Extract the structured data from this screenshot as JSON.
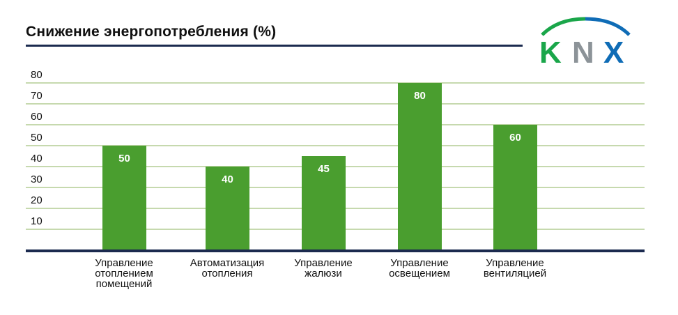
{
  "title": "Снижение энергопотребления (%)",
  "logo": {
    "text": [
      "K",
      "N",
      "X"
    ],
    "colors": {
      "k": "#1aa64a",
      "n": "#8c9398",
      "x": "#0f6cb6",
      "arc_left": "#1aa64a",
      "arc_right": "#0f6cb6"
    }
  },
  "colors": {
    "bar": "#4a9e2f",
    "grid": "#c6d9ae",
    "axis": "#1b2a4f",
    "bar_label": "#ffffff"
  },
  "y_ticks": [
    "80",
    "70",
    "60",
    "50",
    "40",
    "30",
    "20",
    "10"
  ],
  "bars": [
    {
      "label": "Управление\nотоплением\nпомещений",
      "value": "50"
    },
    {
      "label": "Автоматизация\nотопления",
      "value": "40"
    },
    {
      "label": "Управление\nжалюзи",
      "value": "45"
    },
    {
      "label": "Управление\nосвещением",
      "value": "80"
    },
    {
      "label": "Управление\nвентиляцией",
      "value": "60"
    }
  ],
  "chart_data": {
    "type": "bar",
    "title": "Снижение энергопотребления (%)",
    "categories": [
      "Управление отоплением помещений",
      "Автоматизация отопления",
      "Управление жалюзи",
      "Управление освещением",
      "Управление вентиляцией"
    ],
    "values": [
      50,
      40,
      45,
      80,
      60
    ],
    "xlabel": "",
    "ylabel": "",
    "ylim": [
      0,
      80
    ],
    "yticks": [
      10,
      20,
      30,
      40,
      50,
      60,
      70,
      80
    ],
    "grid": true,
    "data_labels": true,
    "legend": null
  }
}
